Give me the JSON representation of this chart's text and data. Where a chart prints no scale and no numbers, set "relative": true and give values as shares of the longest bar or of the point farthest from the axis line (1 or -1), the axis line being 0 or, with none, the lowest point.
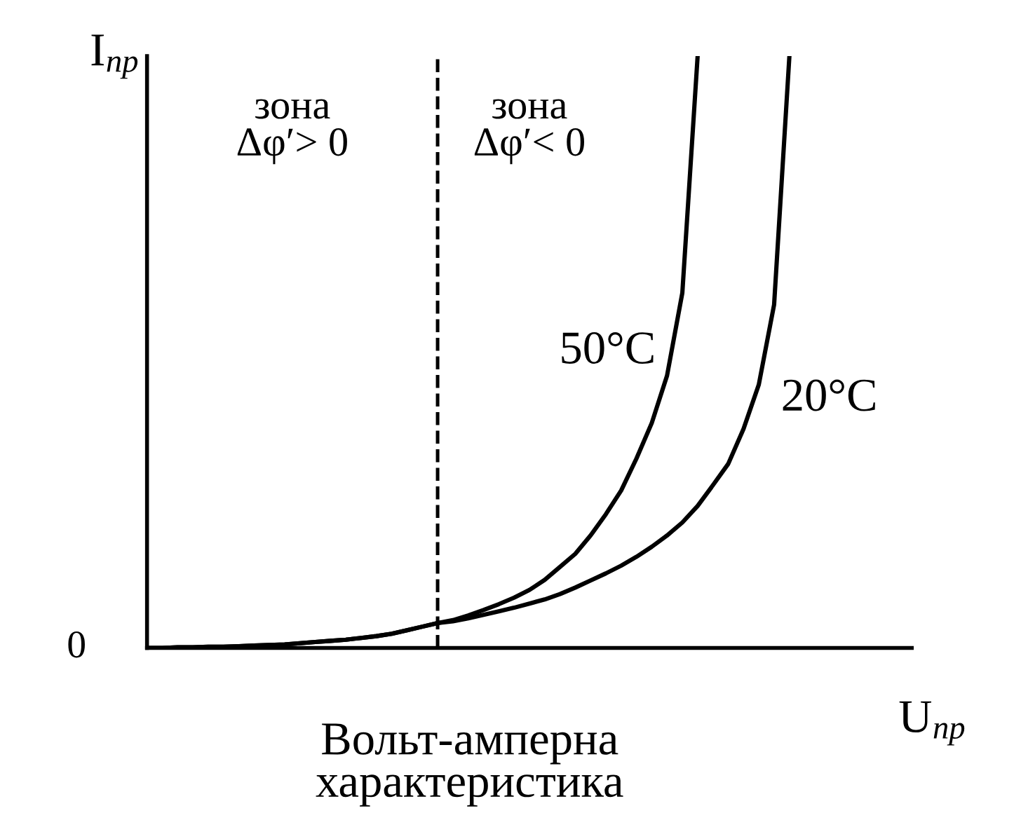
{
  "chart_data": {
    "type": "line",
    "relative": true,
    "xlabel": "U$_{пр}$",
    "ylabel": "I$_{пр}$",
    "legend": false,
    "grid": false,
    "marker": "none",
    "line_style": "solid",
    "categories": [
      null,
      null,
      null,
      null,
      null,
      null,
      null,
      null,
      null,
      null,
      null,
      null,
      null,
      null,
      null,
      null,
      null,
      null,
      null,
      null,
      null,
      null,
      null,
      null,
      null,
      null,
      null,
      null,
      null,
      null,
      null,
      null,
      null,
      null,
      null,
      null,
      null,
      null,
      null,
      null,
      null,
      null,
      null,
      null,
      null,
      null,
      null,
      null,
      null,
      null,
      null
    ],
    "series": [
      {
        "name": "50°C",
        "color": "#000000",
        "values": [
          0,
          0,
          0.001,
          0.001,
          0.002,
          0.002,
          0.003,
          0.004,
          0.005,
          0.006,
          0.008,
          0.01,
          0.012,
          0.014,
          0.017,
          0.02,
          0.024,
          0.03,
          0.036,
          0.042,
          0.047,
          0.055,
          0.064,
          0.074,
          0.085,
          0.098,
          0.115,
          0.137,
          0.159,
          0.19,
          0.226,
          0.266,
          0.32,
          0.38,
          0.46,
          0.6,
          1.0,
          null,
          null,
          null,
          null,
          null,
          null,
          null,
          null,
          null,
          null,
          null,
          null,
          null,
          null
        ]
      },
      {
        "name": "20°C",
        "color": "#000000",
        "values": [
          0,
          0,
          0.001,
          0.001,
          0.002,
          0.002,
          0.003,
          0.004,
          0.005,
          0.006,
          0.008,
          0.01,
          0.012,
          0.014,
          0.017,
          0.02,
          0.024,
          0.03,
          0.036,
          0.042,
          0.045,
          0.05,
          0.056,
          0.062,
          0.068,
          0.075,
          0.082,
          0.091,
          0.102,
          0.114,
          0.126,
          0.139,
          0.154,
          0.171,
          0.19,
          0.212,
          0.24,
          0.275,
          0.311,
          0.37,
          0.445,
          0.58,
          1.0,
          null,
          null,
          null,
          null,
          null,
          null,
          null,
          null
        ]
      }
    ],
    "ref_lines": [
      {
        "axis": "x",
        "color": "#000000",
        "line_style": "dashed"
      }
    ],
    "annotations": [
      "0",
      "зона\nΔφ′> 0",
      "зона\nΔφ′< 0",
      "Вольт-амперна\nхарактеристика"
    ]
  }
}
